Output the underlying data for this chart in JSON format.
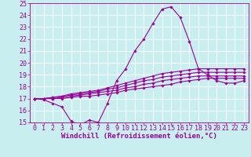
{
  "xlabel": "Windchill (Refroidissement éolien,°C)",
  "xlim": [
    -0.5,
    23.5
  ],
  "ylim": [
    15,
    25
  ],
  "yticks": [
    15,
    16,
    17,
    18,
    19,
    20,
    21,
    22,
    23,
    24,
    25
  ],
  "xticks": [
    0,
    1,
    2,
    3,
    4,
    5,
    6,
    7,
    8,
    9,
    10,
    11,
    12,
    13,
    14,
    15,
    16,
    17,
    18,
    19,
    20,
    21,
    22,
    23
  ],
  "background_color": "#c8eef0",
  "line_color": "#990099",
  "grid_color": "#ffffff",
  "lines": [
    [
      17.0,
      16.9,
      16.6,
      16.3,
      15.1,
      14.8,
      15.2,
      15.0,
      16.6,
      18.5,
      19.5,
      21.0,
      22.0,
      23.3,
      24.5,
      24.7,
      23.8,
      21.8,
      19.5,
      19.0,
      18.5,
      18.3,
      18.3,
      18.5
    ],
    [
      17.0,
      17.0,
      17.0,
      17.0,
      17.1,
      17.2,
      17.2,
      17.3,
      17.4,
      17.5,
      17.7,
      17.8,
      17.9,
      18.0,
      18.1,
      18.2,
      18.4,
      18.5,
      18.6,
      18.7,
      18.7,
      18.7,
      18.7,
      18.7
    ],
    [
      17.0,
      17.0,
      17.0,
      17.1,
      17.2,
      17.3,
      17.4,
      17.5,
      17.6,
      17.7,
      17.9,
      18.0,
      18.2,
      18.3,
      18.5,
      18.6,
      18.7,
      18.8,
      18.9,
      18.9,
      18.9,
      18.9,
      18.9,
      18.9
    ],
    [
      17.0,
      17.0,
      17.1,
      17.2,
      17.3,
      17.4,
      17.5,
      17.6,
      17.8,
      17.9,
      18.1,
      18.3,
      18.5,
      18.6,
      18.8,
      18.9,
      19.0,
      19.1,
      19.2,
      19.2,
      19.2,
      19.2,
      19.2,
      19.2
    ],
    [
      17.0,
      17.0,
      17.1,
      17.2,
      17.4,
      17.5,
      17.6,
      17.7,
      17.9,
      18.1,
      18.3,
      18.5,
      18.7,
      18.9,
      19.1,
      19.2,
      19.3,
      19.4,
      19.5,
      19.5,
      19.5,
      19.5,
      19.5,
      19.5
    ]
  ],
  "tick_fontsize": 6.0,
  "xlabel_fontsize": 6.5
}
